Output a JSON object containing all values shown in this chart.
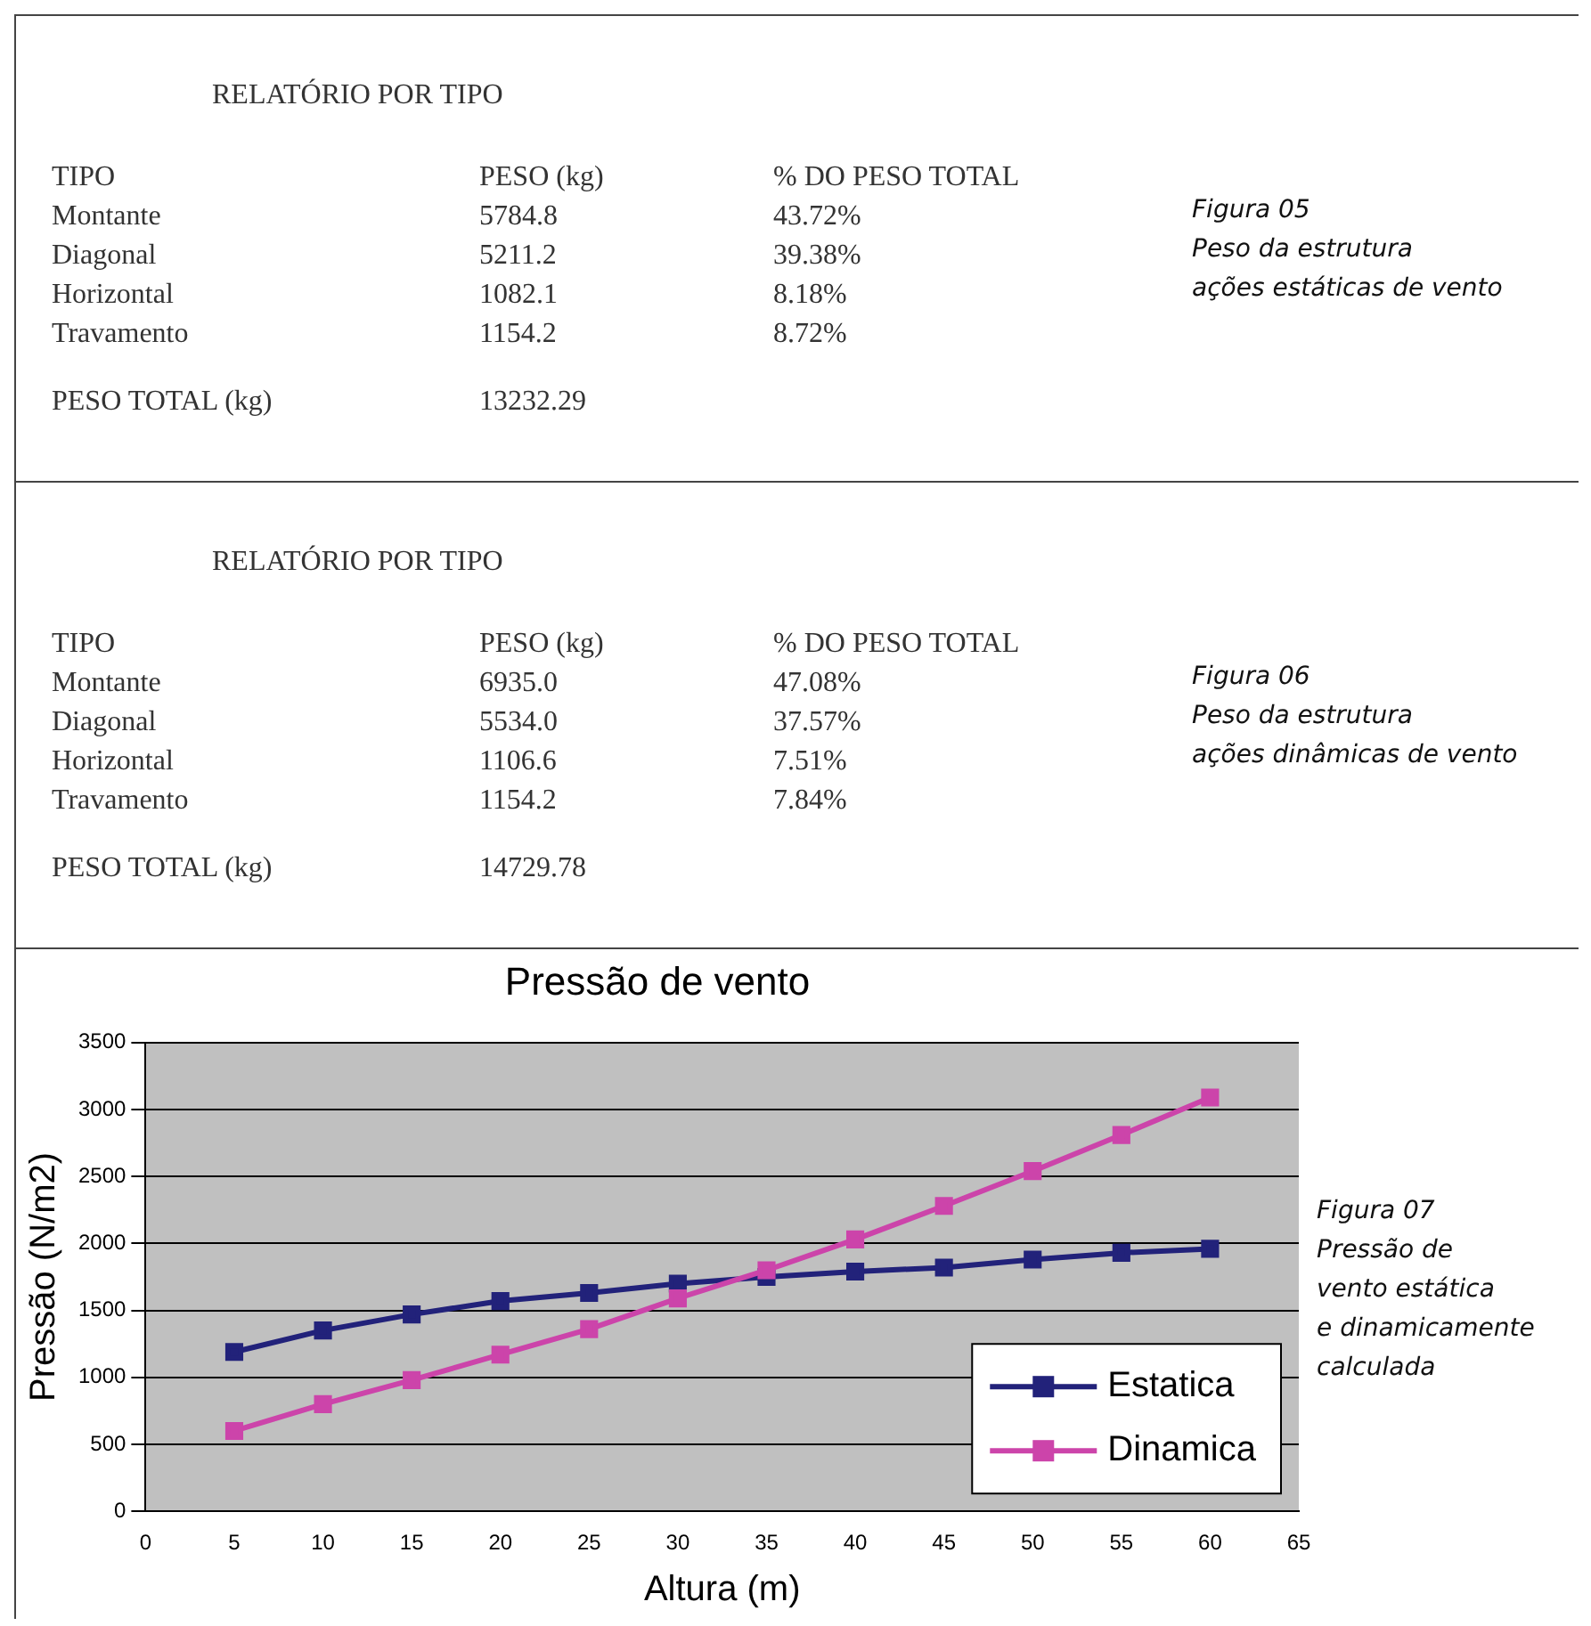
{
  "chart_data": [
    {
      "type": "other",
      "title": "RELATÓRIO POR TIPO",
      "annotations": [
        "TIPO\tPESO (kg)\t% DO PESO TOTAL",
        "Montante\t5784.8\t43.72%",
        "Diagonal\t5211.2\t39.38%",
        "Horizontal\t1082.1\t8.18%",
        "Travamento\t1154.2\t8.72%",
        "PESO TOTAL (kg)\t13232.29",
        "Figura 05",
        "Peso da estrutura",
        "ações estáticas de vento"
      ]
    },
    {
      "type": "other",
      "title": "RELATÓRIO POR TIPO",
      "annotations": [
        "TIPO\tPESO (kg)\t% DO PESO TOTAL",
        "Montante\t6935.0\t47.08%",
        "Diagonal\t5534.0\t37.57%",
        "Horizontal\t1106.6\t7.51%",
        "Travamento\t1154.2\t7.84%",
        "PESO TOTAL (kg)\t14729.78",
        "Figura 06",
        "Peso da estrutura",
        "ações dinâmicas de vento"
      ]
    },
    {
      "type": "line",
      "title": "Pressão de vento",
      "xlabel": "Altura (m)",
      "ylabel": "Pressão (N/m2)",
      "x": [
        5,
        10,
        15,
        20,
        25,
        30,
        35,
        40,
        45,
        50,
        55,
        60
      ],
      "series": [
        {
          "name": "Estatica",
          "color": "#22227a",
          "values": [
            1190,
            1350,
            1470,
            1570,
            1630,
            1700,
            1750,
            1790,
            1820,
            1880,
            1930,
            1960
          ]
        },
        {
          "name": "Dinamica",
          "color": "#cc44aa",
          "values": [
            600,
            800,
            980,
            1170,
            1360,
            1590,
            1800,
            2030,
            2280,
            2540,
            2810,
            3090
          ]
        }
      ],
      "xlim": [
        0,
        65
      ],
      "xticks": [
        0,
        5,
        10,
        15,
        20,
        25,
        30,
        35,
        40,
        45,
        50,
        55,
        60,
        65
      ],
      "ylim": [
        0,
        3500
      ],
      "yticks": [
        0,
        500,
        1000,
        1500,
        2000,
        2500,
        3000,
        3500
      ],
      "grid": "y",
      "legend": "bottom right",
      "marker": "square",
      "line_style": "solid",
      "annotations": [
        "Figura 07",
        "Pressão de",
        "vento estática",
        "e dinamicamente",
        "calculada"
      ]
    }
  ]
}
